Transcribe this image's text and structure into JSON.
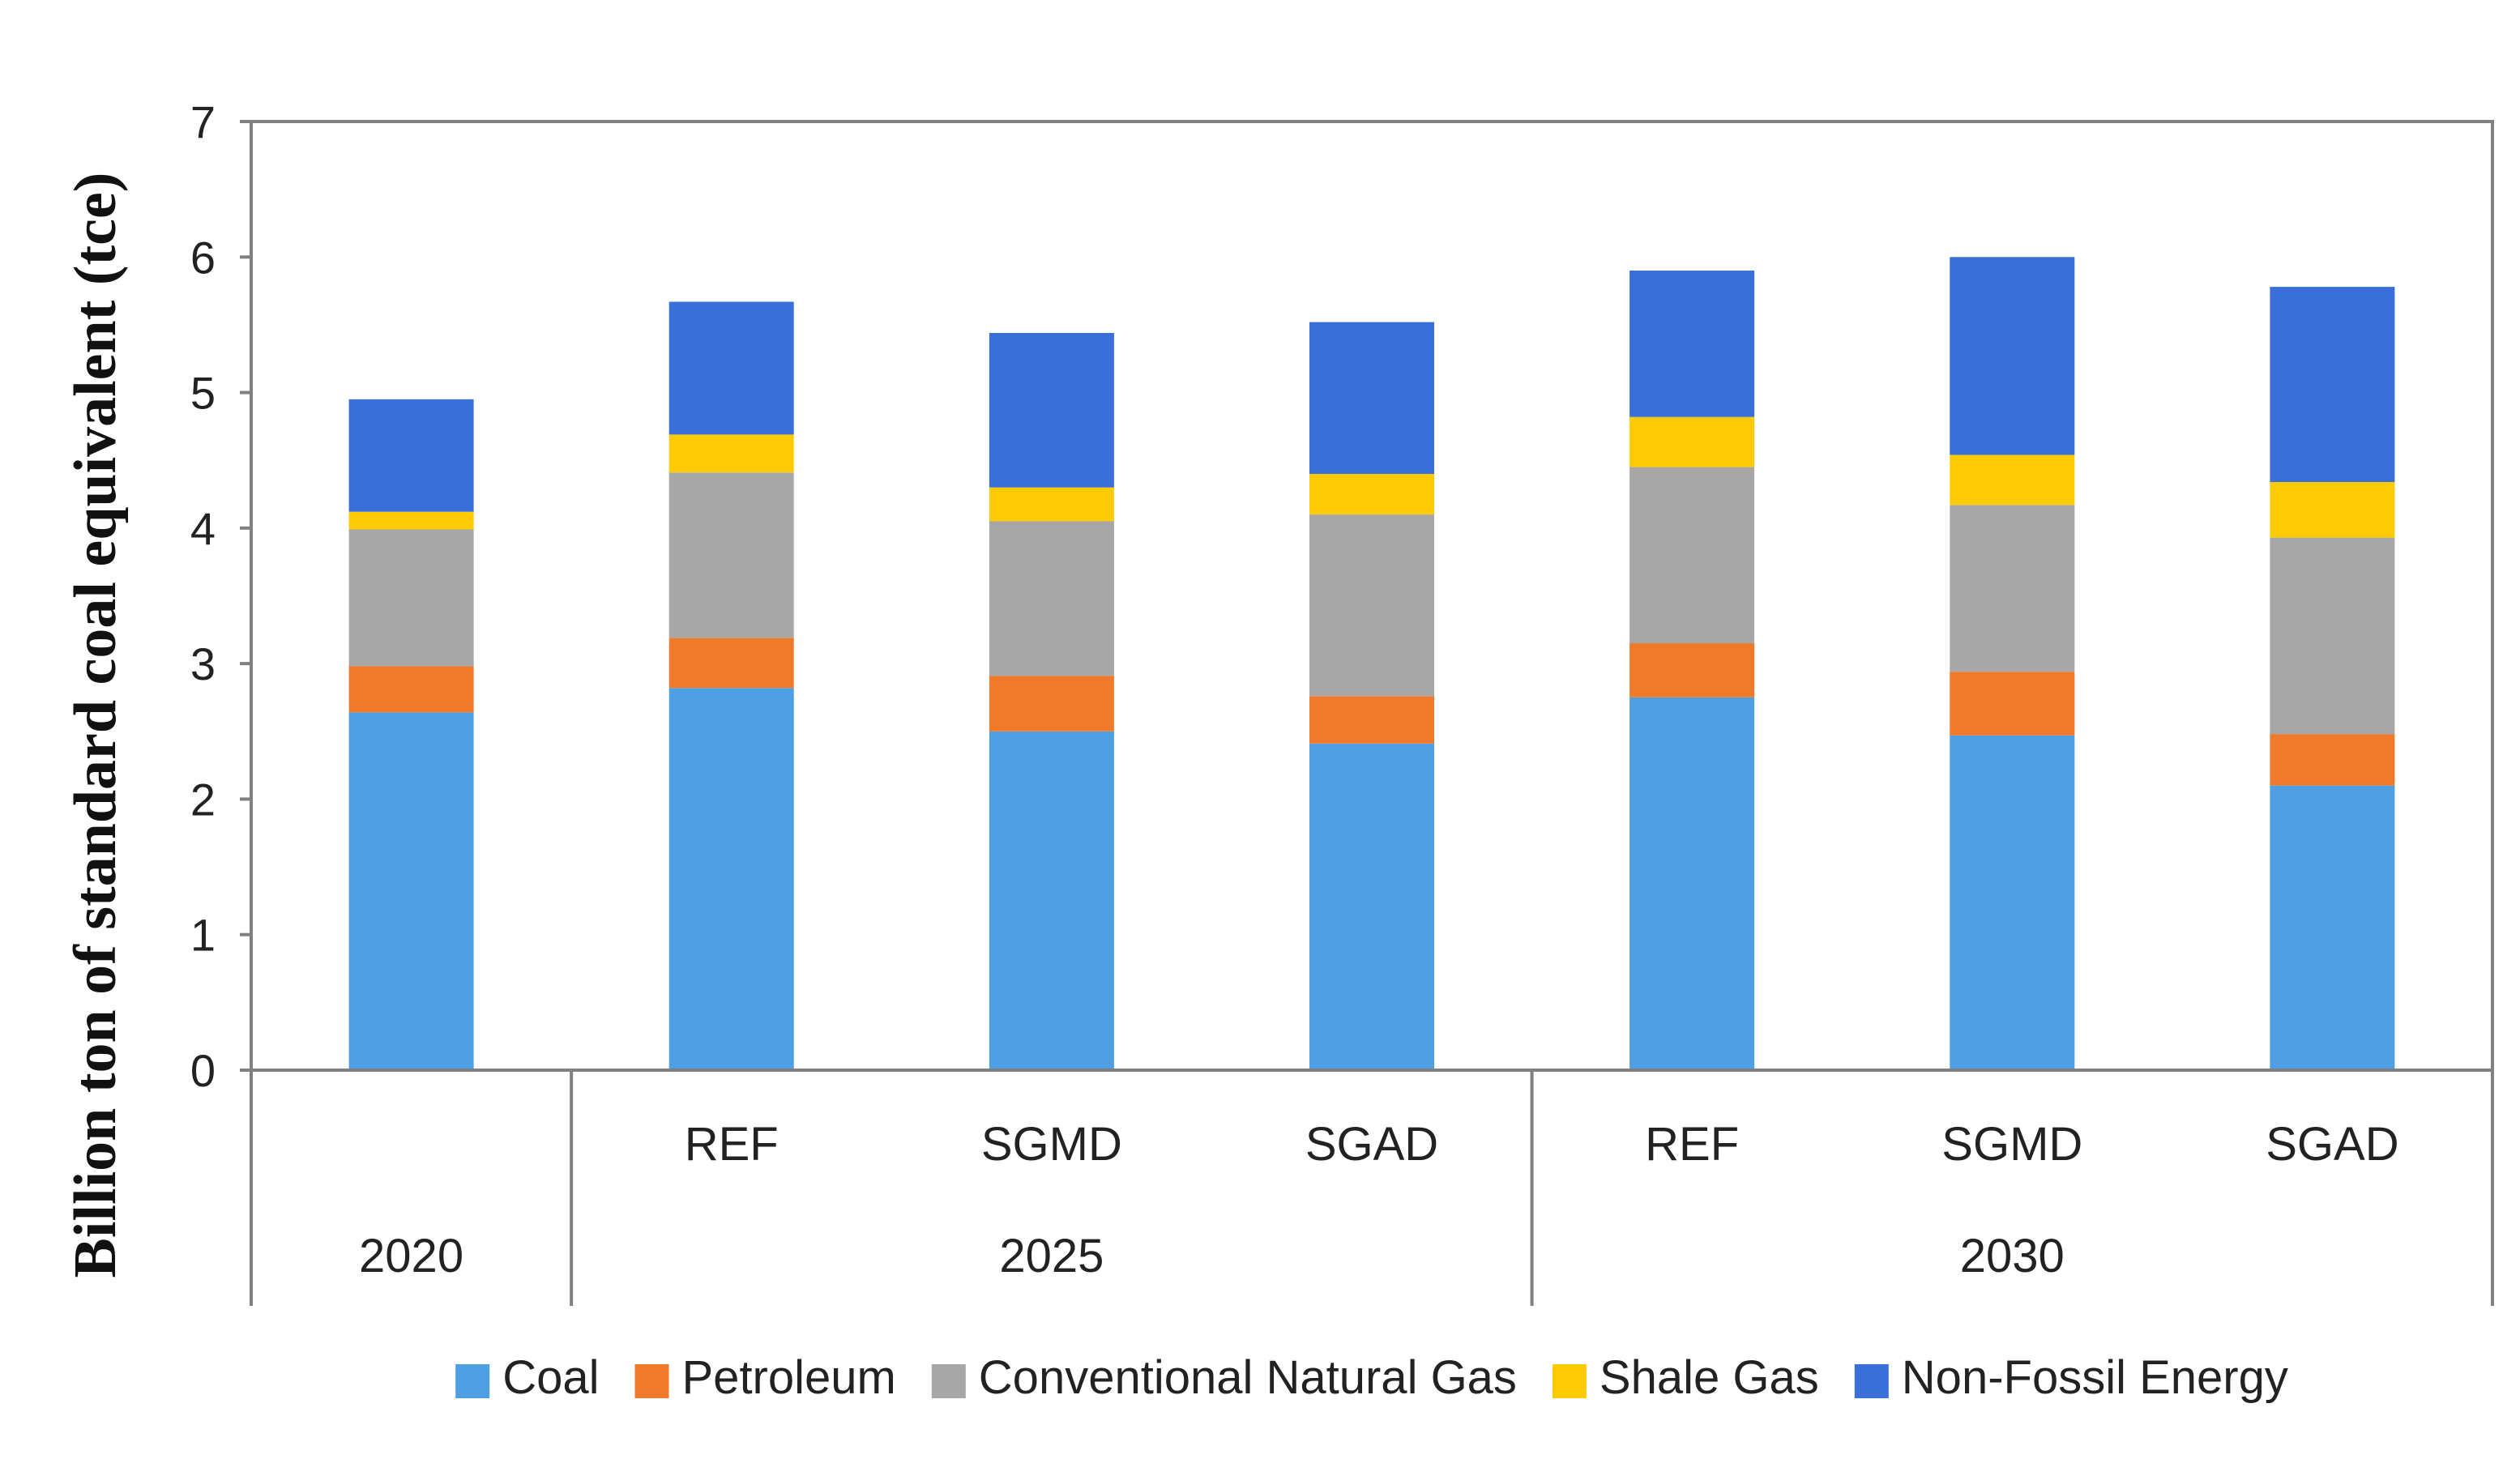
{
  "chart_data": {
    "type": "bar",
    "stacked": true,
    "title": "",
    "xlabel": "",
    "ylabel": "Billion ton of standard coal equivalent (tce)",
    "ylim": [
      0,
      7
    ],
    "yticks": [
      "0",
      "1",
      "2",
      "3",
      "4",
      "5",
      "6",
      "7"
    ],
    "categories": [
      "",
      "REF",
      "SGMD",
      "SGAD",
      "REF",
      "SGMD",
      "SGAD"
    ],
    "groups": [
      {
        "label": "2020",
        "span": 1
      },
      {
        "label": "2025",
        "span": 3
      },
      {
        "label": "2030",
        "span": 3
      }
    ],
    "grid": false,
    "legend_position": "bottom",
    "series": [
      {
        "name": "Coal",
        "color": "#4F9FE3",
        "values": [
          2.64,
          2.82,
          2.5,
          2.41,
          2.75,
          2.47,
          2.1
        ]
      },
      {
        "name": "Petroleum",
        "color": "#F07A2B",
        "values": [
          0.34,
          0.37,
          0.41,
          0.35,
          0.4,
          0.47,
          0.38
        ]
      },
      {
        "name": "Conventional Natural Gas",
        "color": "#A7A7A7",
        "values": [
          1.01,
          1.22,
          1.14,
          1.34,
          1.3,
          1.23,
          1.45
        ]
      },
      {
        "name": "Shale Gas",
        "color": "#FCCB05",
        "values": [
          0.13,
          0.28,
          0.25,
          0.3,
          0.37,
          0.37,
          0.41
        ]
      },
      {
        "name": "Non-Fossil Energy",
        "color": "#3A6FD9",
        "values": [
          0.83,
          0.98,
          1.14,
          1.12,
          1.08,
          1.46,
          1.44
        ]
      }
    ]
  }
}
